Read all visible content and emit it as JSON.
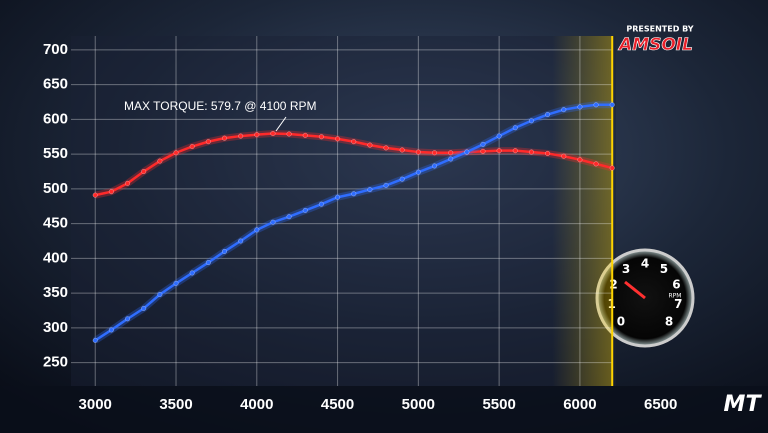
{
  "chart_data": {
    "type": "line",
    "annotation": "MAX TORQUE: 579.7 @ 4100 RPM",
    "x": [
      3000,
      3100,
      3200,
      3300,
      3400,
      3500,
      3600,
      3700,
      3800,
      3900,
      4000,
      4100,
      4200,
      4300,
      4400,
      4500,
      4600,
      4700,
      4800,
      4900,
      5000,
      5100,
      5200,
      5300,
      5400,
      5500,
      5600,
      5700,
      5800,
      5900,
      6000,
      6100,
      6200
    ],
    "series": [
      {
        "color": "#ff2a2a",
        "values": [
          491,
          496,
          508,
          525,
          540,
          552,
          561,
          568,
          573,
          576,
          578,
          579.7,
          579,
          577,
          575,
          572,
          568,
          563,
          559,
          556,
          553,
          552,
          552,
          553,
          554,
          555,
          555,
          553,
          551,
          547,
          542,
          536,
          530
        ]
      },
      {
        "color": "#2f6dff",
        "values": [
          282,
          297,
          313,
          328,
          348,
          364,
          379,
          394,
          410,
          425,
          441,
          452,
          460,
          469,
          478,
          488,
          493,
          499,
          505,
          514,
          524,
          533,
          543,
          553,
          564,
          576,
          588,
          598,
          607,
          614,
          618,
          621,
          621
        ]
      }
    ],
    "xlim": [
      2850,
      6700
    ],
    "xticks": [
      3000,
      3500,
      4000,
      4500,
      5000,
      5500,
      6000,
      6500
    ],
    "ylim": [
      225,
      720
    ],
    "yticks": [
      250,
      300,
      350,
      400,
      450,
      500,
      550,
      600,
      650,
      700
    ],
    "grid": true
  },
  "overlay": {
    "sponsor_label": "PRESENTED BY",
    "sponsor": "AMSOIL",
    "watermark": "MT",
    "gauge_unit": "RPM",
    "gauge_digits": [
      0,
      1,
      2,
      3,
      4,
      5,
      6,
      7,
      8
    ]
  }
}
